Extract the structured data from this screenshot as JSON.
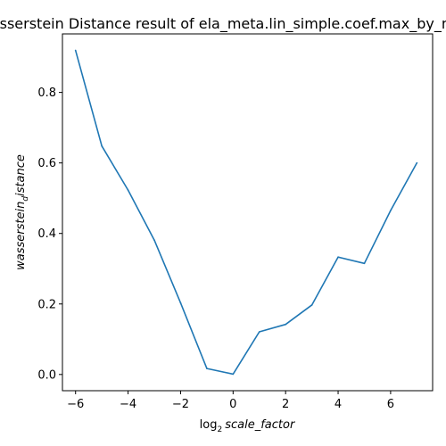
{
  "chart_data": {
    "type": "line",
    "title": "Wasserstein Distance result of ela_meta.lin_simple.coef.max_by_min",
    "xlabel_prefix": "log",
    "xlabel_sub": "2",
    "xlabel_main": "scale_factor",
    "ylabel_main": "wasserstein",
    "ylabel_sub": "d",
    "ylabel_tail": "istance",
    "xlim": [
      -6.5,
      7.6
    ],
    "ylim": [
      -0.046,
      0.966
    ],
    "x_ticks": [
      -6,
      -4,
      -2,
      0,
      2,
      4,
      6
    ],
    "x_tick_labels": [
      "−6",
      "−4",
      "−2",
      "0",
      "2",
      "4",
      "6"
    ],
    "y_ticks": [
      0.0,
      0.2,
      0.4,
      0.6,
      0.8
    ],
    "y_tick_labels": [
      "0.0",
      "0.2",
      "0.4",
      "0.6",
      "0.8"
    ],
    "grid": false,
    "series": [
      {
        "color": "#1f77b4",
        "x": [
          -6,
          -5,
          -4,
          -3,
          -2,
          -1,
          0,
          1,
          2,
          3,
          4,
          5,
          6,
          7
        ],
        "y": [
          0.919,
          0.648,
          0.523,
          0.381,
          0.203,
          0.017,
          0.001,
          0.121,
          0.142,
          0.197,
          0.333,
          0.315,
          0.465,
          0.6
        ]
      }
    ]
  }
}
